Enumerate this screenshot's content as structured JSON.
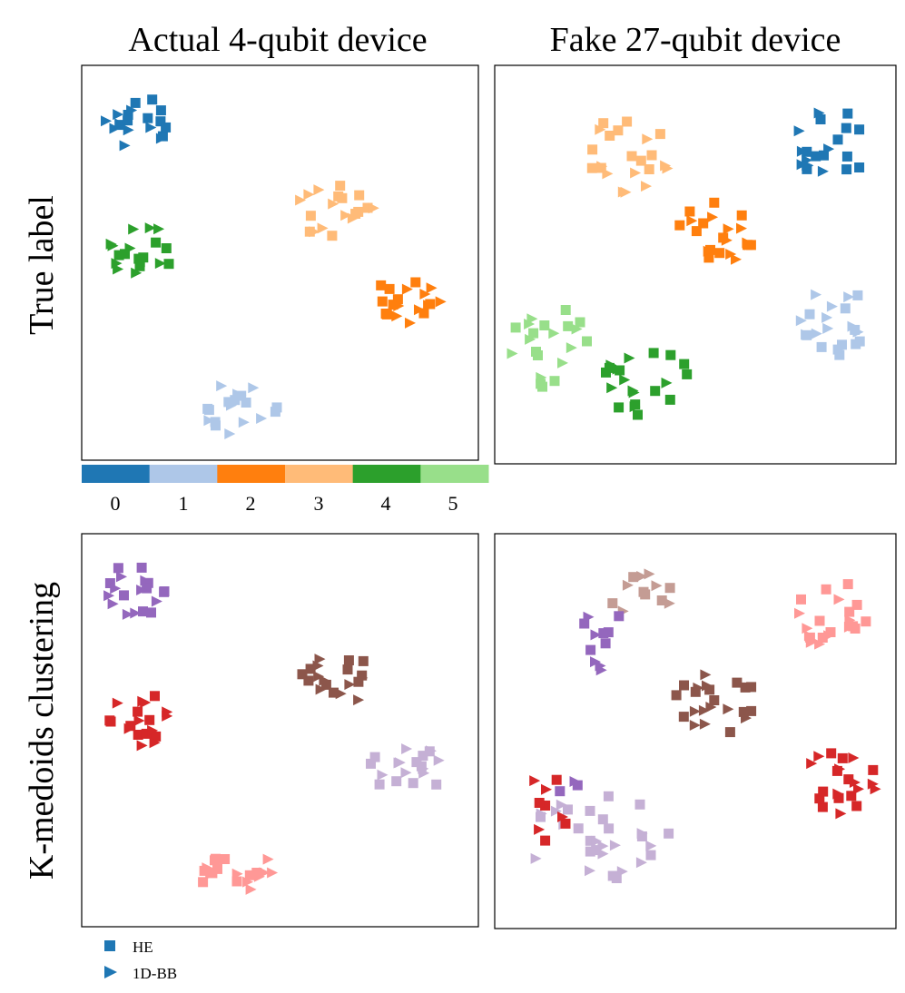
{
  "column_titles": [
    "Actual 4-qubit device",
    "Fake 27-qubit device"
  ],
  "row_titles": [
    "True label",
    "K-medoids clustering"
  ],
  "colorbar": {
    "ticks": [
      "0",
      "1",
      "2",
      "3",
      "4",
      "5"
    ],
    "colors": [
      "#1f77b4",
      "#aec7e8",
      "#ff7f0e",
      "#ffbb78",
      "#2ca02c",
      "#98df8a"
    ]
  },
  "legend": [
    {
      "label": "HE",
      "marker": "square",
      "color": "#1f77b4"
    },
    {
      "label": "1D-BB",
      "marker": "triangle-right",
      "color": "#1f77b4"
    }
  ],
  "palettes": {
    "true_label": [
      "#1f77b4",
      "#aec7e8",
      "#ff7f0e",
      "#ffbb78",
      "#2ca02c",
      "#98df8a"
    ],
    "kmedoids": [
      "#9467bd",
      "#d62728",
      "#8c564b",
      "#c5b0d5",
      "#ff9896",
      "#c49c94"
    ]
  },
  "chart_data": [
    {
      "type": "scatter",
      "name": "actual-true-label",
      "color_key": "true_label",
      "xlim": [
        0,
        100
      ],
      "ylim": [
        0,
        100
      ],
      "grid": false,
      "ticks": "none",
      "clusters": [
        {
          "label": 0,
          "center": [
            14,
            86
          ],
          "spread": [
            8,
            7
          ],
          "n_sq": 10,
          "n_tri": 9
        },
        {
          "label": 4,
          "center": [
            15,
            53
          ],
          "spread": [
            8,
            7
          ],
          "n_sq": 9,
          "n_tri": 10
        },
        {
          "label": 3,
          "center": [
            64,
            63
          ],
          "spread": [
            10,
            7
          ],
          "n_sq": 10,
          "n_tri": 9
        },
        {
          "label": 2,
          "center": [
            82,
            40
          ],
          "spread": [
            10,
            6
          ],
          "n_sq": 10,
          "n_tri": 9
        },
        {
          "label": 1,
          "center": [
            40,
            13
          ],
          "spread": [
            10,
            7
          ],
          "n_sq": 10,
          "n_tri": 9
        }
      ]
    },
    {
      "type": "scatter",
      "name": "fake-true-label",
      "color_key": "true_label",
      "xlim": [
        0,
        100
      ],
      "ylim": [
        0,
        100
      ],
      "grid": false,
      "ticks": "none",
      "clusters": [
        {
          "label": 3,
          "center": [
            33,
            78
          ],
          "spread": [
            11,
            10
          ],
          "n_sq": 12,
          "n_tri": 10
        },
        {
          "label": 0,
          "center": [
            84,
            80
          ],
          "spread": [
            10,
            9
          ],
          "n_sq": 12,
          "n_tri": 9
        },
        {
          "label": 2,
          "center": [
            55,
            58
          ],
          "spread": [
            10,
            9
          ],
          "n_sq": 12,
          "n_tri": 10
        },
        {
          "label": 1,
          "center": [
            86,
            36
          ],
          "spread": [
            10,
            9
          ],
          "n_sq": 11,
          "n_tri": 10
        },
        {
          "label": 5,
          "center": [
            14,
            30
          ],
          "spread": [
            11,
            11
          ],
          "n_sq": 12,
          "n_tri": 9
        },
        {
          "label": 4,
          "center": [
            38,
            20
          ],
          "spread": [
            11,
            10
          ],
          "n_sq": 12,
          "n_tri": 9
        }
      ]
    },
    {
      "type": "scatter",
      "name": "actual-kmedoids",
      "color_key": "kmedoids",
      "xlim": [
        0,
        100
      ],
      "ylim": [
        0,
        100
      ],
      "grid": false,
      "ticks": "none",
      "clusters": [
        {
          "label": 0,
          "center": [
            14,
            86
          ],
          "spread": [
            8,
            7
          ],
          "n_sq": 10,
          "n_tri": 9
        },
        {
          "label": 1,
          "center": [
            15,
            53
          ],
          "spread": [
            8,
            7
          ],
          "n_sq": 9,
          "n_tri": 10
        },
        {
          "label": 2,
          "center": [
            64,
            63
          ],
          "spread": [
            10,
            7
          ],
          "n_sq": 10,
          "n_tri": 9
        },
        {
          "label": 3,
          "center": [
            82,
            40
          ],
          "spread": [
            10,
            6
          ],
          "n_sq": 10,
          "n_tri": 9
        },
        {
          "label": 4,
          "center": [
            40,
            13
          ],
          "spread": [
            10,
            7
          ],
          "n_sq": 10,
          "n_tri": 9
        }
      ]
    },
    {
      "type": "scatter",
      "name": "fake-kmedoids",
      "color_key": "kmedoids",
      "xlim": [
        0,
        100
      ],
      "ylim": [
        0,
        100
      ],
      "grid": false,
      "ticks": "none",
      "clusters": [
        {
          "label": 5,
          "center": [
            36,
            84
          ],
          "spread": [
            9,
            7
          ],
          "n_sq": 6,
          "n_tri": 6
        },
        {
          "label": 0,
          "center": [
            28,
            72
          ],
          "spread": [
            11,
            8
          ],
          "n_sq": 6,
          "n_tri": 5
        },
        {
          "label": 4,
          "center": [
            84,
            80
          ],
          "spread": [
            10,
            9
          ],
          "n_sq": 12,
          "n_tri": 9
        },
        {
          "label": 2,
          "center": [
            55,
            58
          ],
          "spread": [
            10,
            9
          ],
          "n_sq": 12,
          "n_tri": 10
        },
        {
          "label": 1,
          "center": [
            86,
            36
          ],
          "spread": [
            10,
            9
          ],
          "n_sq": 11,
          "n_tri": 10
        },
        {
          "label": 3,
          "center": [
            26,
            24
          ],
          "spread": [
            20,
            12
          ],
          "n_sq": 16,
          "n_tri": 14
        },
        {
          "label": 1,
          "center": [
            12,
            30
          ],
          "spread": [
            8,
            9
          ],
          "n_sq": 5,
          "n_tri": 4
        },
        {
          "label": 0,
          "center": [
            24,
            36
          ],
          "spread": [
            8,
            5
          ],
          "n_sq": 2,
          "n_tri": 1
        }
      ]
    }
  ]
}
